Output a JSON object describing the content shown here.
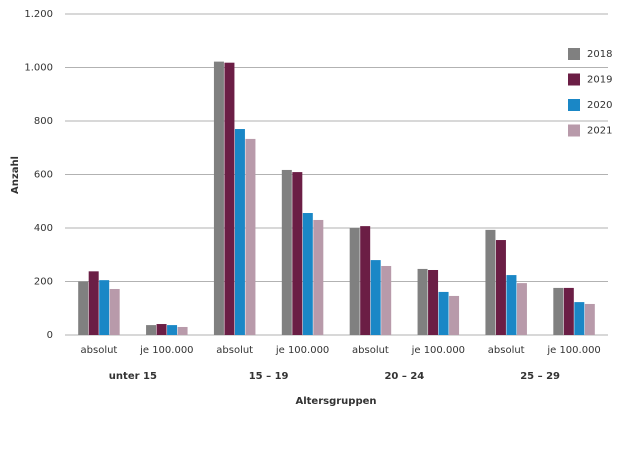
{
  "chart_data": {
    "type": "bar",
    "y_label": "Anzahl",
    "x_label": "Altersgruppen",
    "categories": [
      "absolut",
      "je 100.000",
      "absolut",
      "je 100.000",
      "absolut",
      "je 100.000",
      "absolut",
      "je 100.000"
    ],
    "groups": [
      "unter 15",
      "15 – 19",
      "20 – 24",
      "25 – 29"
    ],
    "series": [
      {
        "name": "2018",
        "color": "#808080",
        "values": [
          200,
          37,
          1022,
          617,
          400,
          247,
          393,
          176
        ]
      },
      {
        "name": "2019",
        "color": "#6b1e45",
        "values": [
          238,
          41,
          1018,
          609,
          407,
          243,
          355,
          176
        ]
      },
      {
        "name": "2020",
        "color": "#1a87c6",
        "values": [
          205,
          37,
          770,
          456,
          280,
          161,
          224,
          123
        ]
      },
      {
        "name": "2021",
        "color": "#b89aaa",
        "values": [
          172,
          30,
          733,
          430,
          258,
          146,
          194,
          116
        ]
      }
    ],
    "ylim": [
      0,
      1200
    ],
    "yticks": [
      0,
      200,
      400,
      600,
      800,
      {
        "value": 1000,
        "label": "1.000"
      },
      {
        "value": 1200,
        "label": "1.200"
      }
    ],
    "grid": true,
    "legend": "right"
  }
}
